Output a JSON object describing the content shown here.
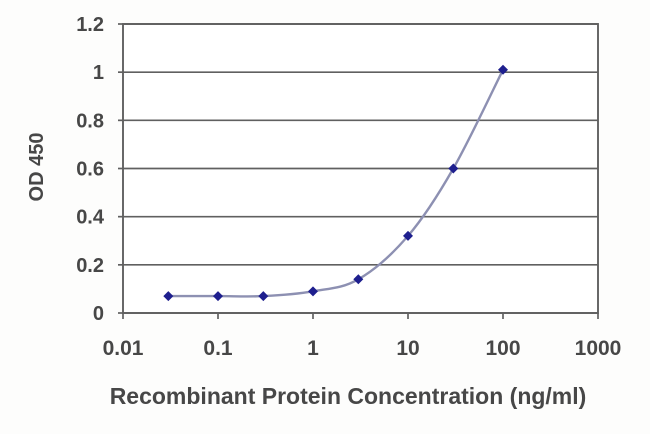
{
  "chart_data": {
    "type": "line",
    "title": "",
    "xlabel": "Recombinant Protein Concentration (ng/ml)",
    "ylabel": "OD 450",
    "xscale": "log",
    "xlim": [
      0.01,
      1000
    ],
    "ylim": [
      0,
      1.2
    ],
    "x_ticks": [
      0.01,
      0.1,
      1,
      10,
      100,
      1000
    ],
    "x_tick_labels": [
      "0.01",
      "0.1",
      "1",
      "10",
      "100",
      "1000"
    ],
    "y_ticks": [
      0,
      0.2,
      0.4,
      0.6,
      0.8,
      1,
      1.2
    ],
    "y_tick_labels": [
      "0",
      "0.2",
      "0.4",
      "0.6",
      "0.8",
      "1",
      "1.2"
    ],
    "grid": "horizontal",
    "legend": "none",
    "series": [
      {
        "name": "OD 450",
        "x": [
          0.03,
          0.1,
          0.3,
          1,
          3,
          10,
          30,
          100
        ],
        "y": [
          0.07,
          0.07,
          0.07,
          0.09,
          0.14,
          0.32,
          0.6,
          1.01
        ],
        "marker": "diamond",
        "line_style": "smooth"
      }
    ]
  },
  "colors": {
    "line": "#8d90b2",
    "marker": "#1e1f8e",
    "grid": "#606060",
    "axis": "#606060",
    "text": "#474747",
    "plot_background": "#ffffff"
  }
}
